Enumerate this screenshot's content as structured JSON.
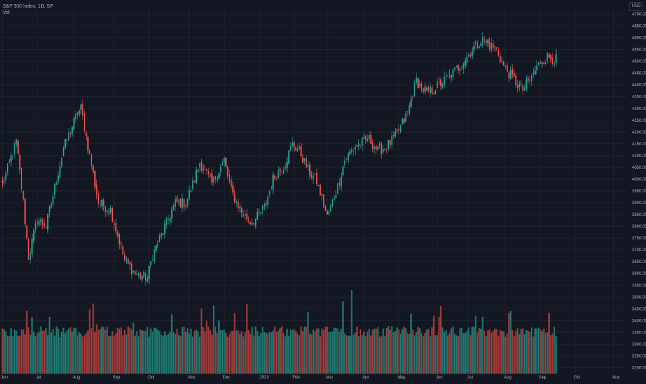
{
  "header": {
    "symbol_line": "S&P 500 Index, 1D, SP",
    "volume_label": "Vol",
    "currency": "USD"
  },
  "colors": {
    "background": "#131722",
    "grid": "#1f2430",
    "up": "#26a69a",
    "down": "#ef5350",
    "up_volume": "#1f7a72",
    "down_volume": "#a33b3a",
    "axis_text": "#b2b5be"
  },
  "chart_data": {
    "type": "candlestick",
    "y_axis": {
      "ticks": [
        3200,
        3250,
        3300,
        3350,
        3400,
        3450,
        3500,
        3550,
        3600,
        3650,
        3700,
        3750,
        3800,
        3850,
        3900,
        3950,
        4000,
        4050,
        4100,
        4150,
        4200,
        4250,
        4300,
        4350,
        4400,
        4450,
        4500,
        4550,
        4600,
        4650,
        4700
      ],
      "tick_labels": [
        "3200.00",
        "3250.00",
        "3300.00",
        "3350.00",
        "3400.00",
        "3450.00",
        "3500.00",
        "3550.00",
        "3600.00",
        "3650.00",
        "3700.00",
        "3750.00",
        "3800.00",
        "3850.00",
        "3900.00",
        "3950.00",
        "4000.00",
        "4050.00",
        "4100.00",
        "4150.00",
        "4200.00",
        "4250.00",
        "4300.00",
        "4350.00",
        "4400.00",
        "4450.00",
        "4500.00",
        "4550.00",
        "4600.00",
        "4650.00",
        "4700.00"
      ],
      "range": [
        3175,
        4725
      ]
    },
    "x_axis": {
      "labels": [
        "Jun",
        "Jul",
        "Aug",
        "Sep",
        "Oct",
        "Nov",
        "Dec",
        "2023",
        "Feb",
        "Mar",
        "Apr",
        "May",
        "Jun",
        "Jul",
        "Aug",
        "Sep",
        "Oct",
        "Nov"
      ],
      "label_bar_index": [
        0,
        20,
        41,
        64,
        84,
        107,
        127,
        148,
        167,
        186,
        207,
        227,
        249,
        267,
        288,
        308,
        328,
        350
      ],
      "bar_count": 318
    },
    "price_anchors": {
      "bar_index": [
        0,
        8,
        12,
        15,
        20,
        25,
        35,
        43,
        45,
        50,
        55,
        62,
        70,
        76,
        83,
        86,
        92,
        99,
        105,
        110,
        113,
        120,
        127,
        131,
        137,
        142,
        145,
        150,
        155,
        162,
        166,
        170,
        175,
        180,
        186,
        192,
        196,
        202,
        210,
        215,
        220,
        225,
        232,
        237,
        242,
        250,
        258,
        265,
        270,
        275,
        283,
        287,
        290,
        294,
        298,
        302,
        308,
        312,
        316
      ],
      "close": [
        3975,
        4160,
        3900,
        3670,
        3830,
        3800,
        4130,
        4280,
        4300,
        4100,
        3900,
        3870,
        3655,
        3600,
        3580,
        3680,
        3780,
        3900,
        3900,
        4000,
        4070,
        3980,
        4080,
        3950,
        3860,
        3820,
        3830,
        3880,
        4000,
        4070,
        4150,
        4120,
        4040,
        3990,
        3840,
        3970,
        4080,
        4140,
        4170,
        4120,
        4140,
        4180,
        4280,
        4420,
        4360,
        4400,
        4450,
        4510,
        4560,
        4590,
        4550,
        4480,
        4450,
        4410,
        4380,
        4420,
        4500,
        4520,
        4510
      ]
    },
    "volume_axis": {
      "range": [
        0,
        15.5
      ]
    }
  }
}
